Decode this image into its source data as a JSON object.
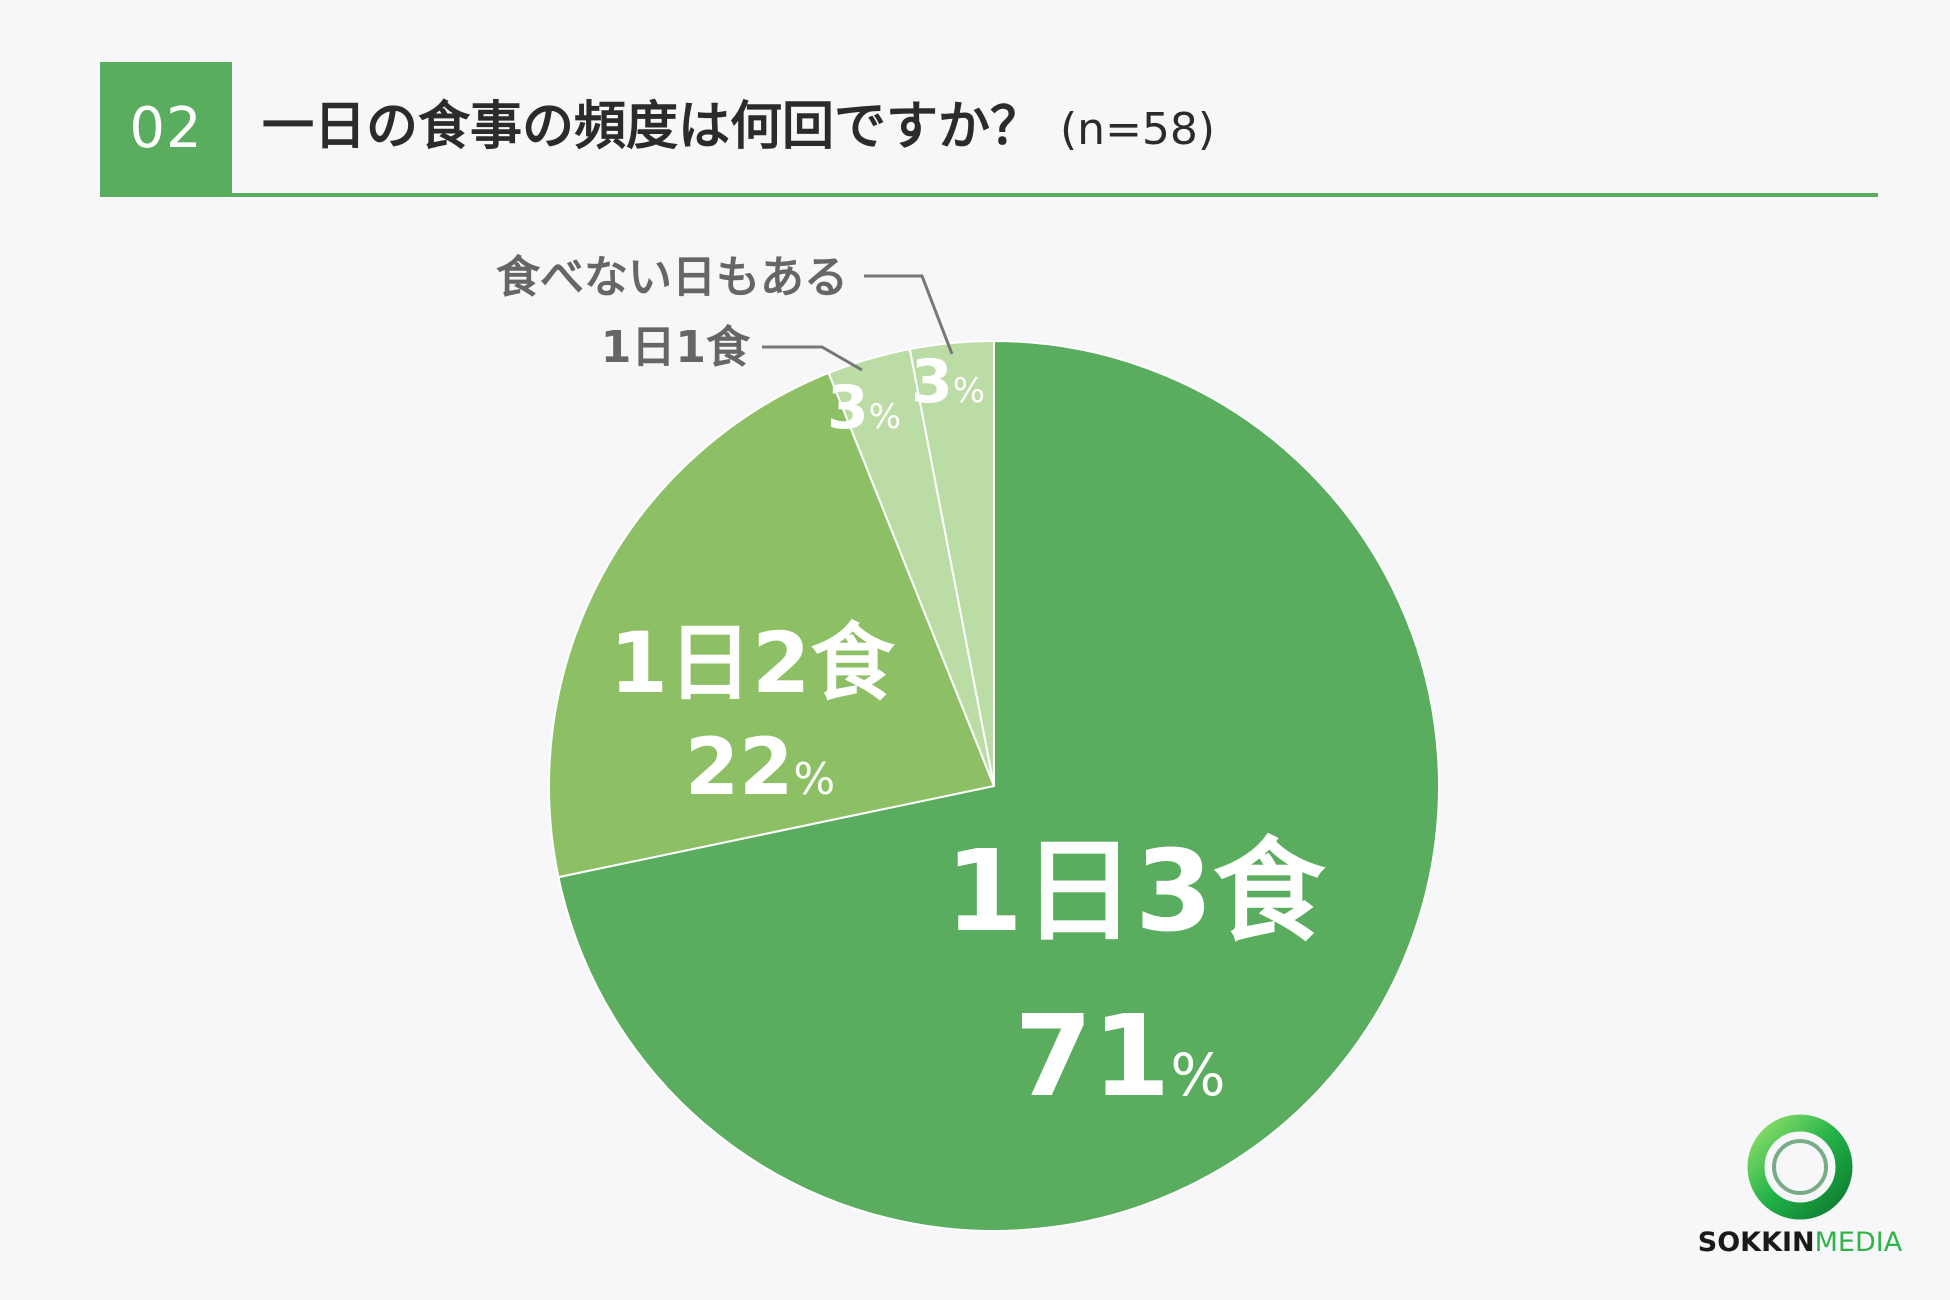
{
  "header": {
    "number": "02",
    "title": "一日の食事の頻度は何回ですか？",
    "sample": "(n=58)"
  },
  "colors": {
    "accent": "#5aac5f",
    "slice_3": "#5aac5f",
    "slice_2": "#8dc065",
    "slice_1": "#bcdca6",
    "slice_none": "#bcdca6"
  },
  "chart_data": {
    "type": "pie",
    "title": "一日の食事の頻度は何回ですか？",
    "slices": [
      {
        "label": "1日3食",
        "value": 71,
        "value_label": "71",
        "color": "#5aac5f"
      },
      {
        "label": "1日2食",
        "value": 22,
        "value_label": "22",
        "color": "#8dc065"
      },
      {
        "label": "1日1食",
        "value": 3,
        "value_label": "3",
        "color": "#bcdca6"
      },
      {
        "label": "食べない日もある",
        "value": 3,
        "value_label": "3",
        "color": "#bcdca6"
      }
    ],
    "unit": "%",
    "start": "12 o'clock",
    "direction": "clockwise"
  },
  "logo": {
    "part1": "SOKKIN",
    "part2": "MEDIA"
  }
}
